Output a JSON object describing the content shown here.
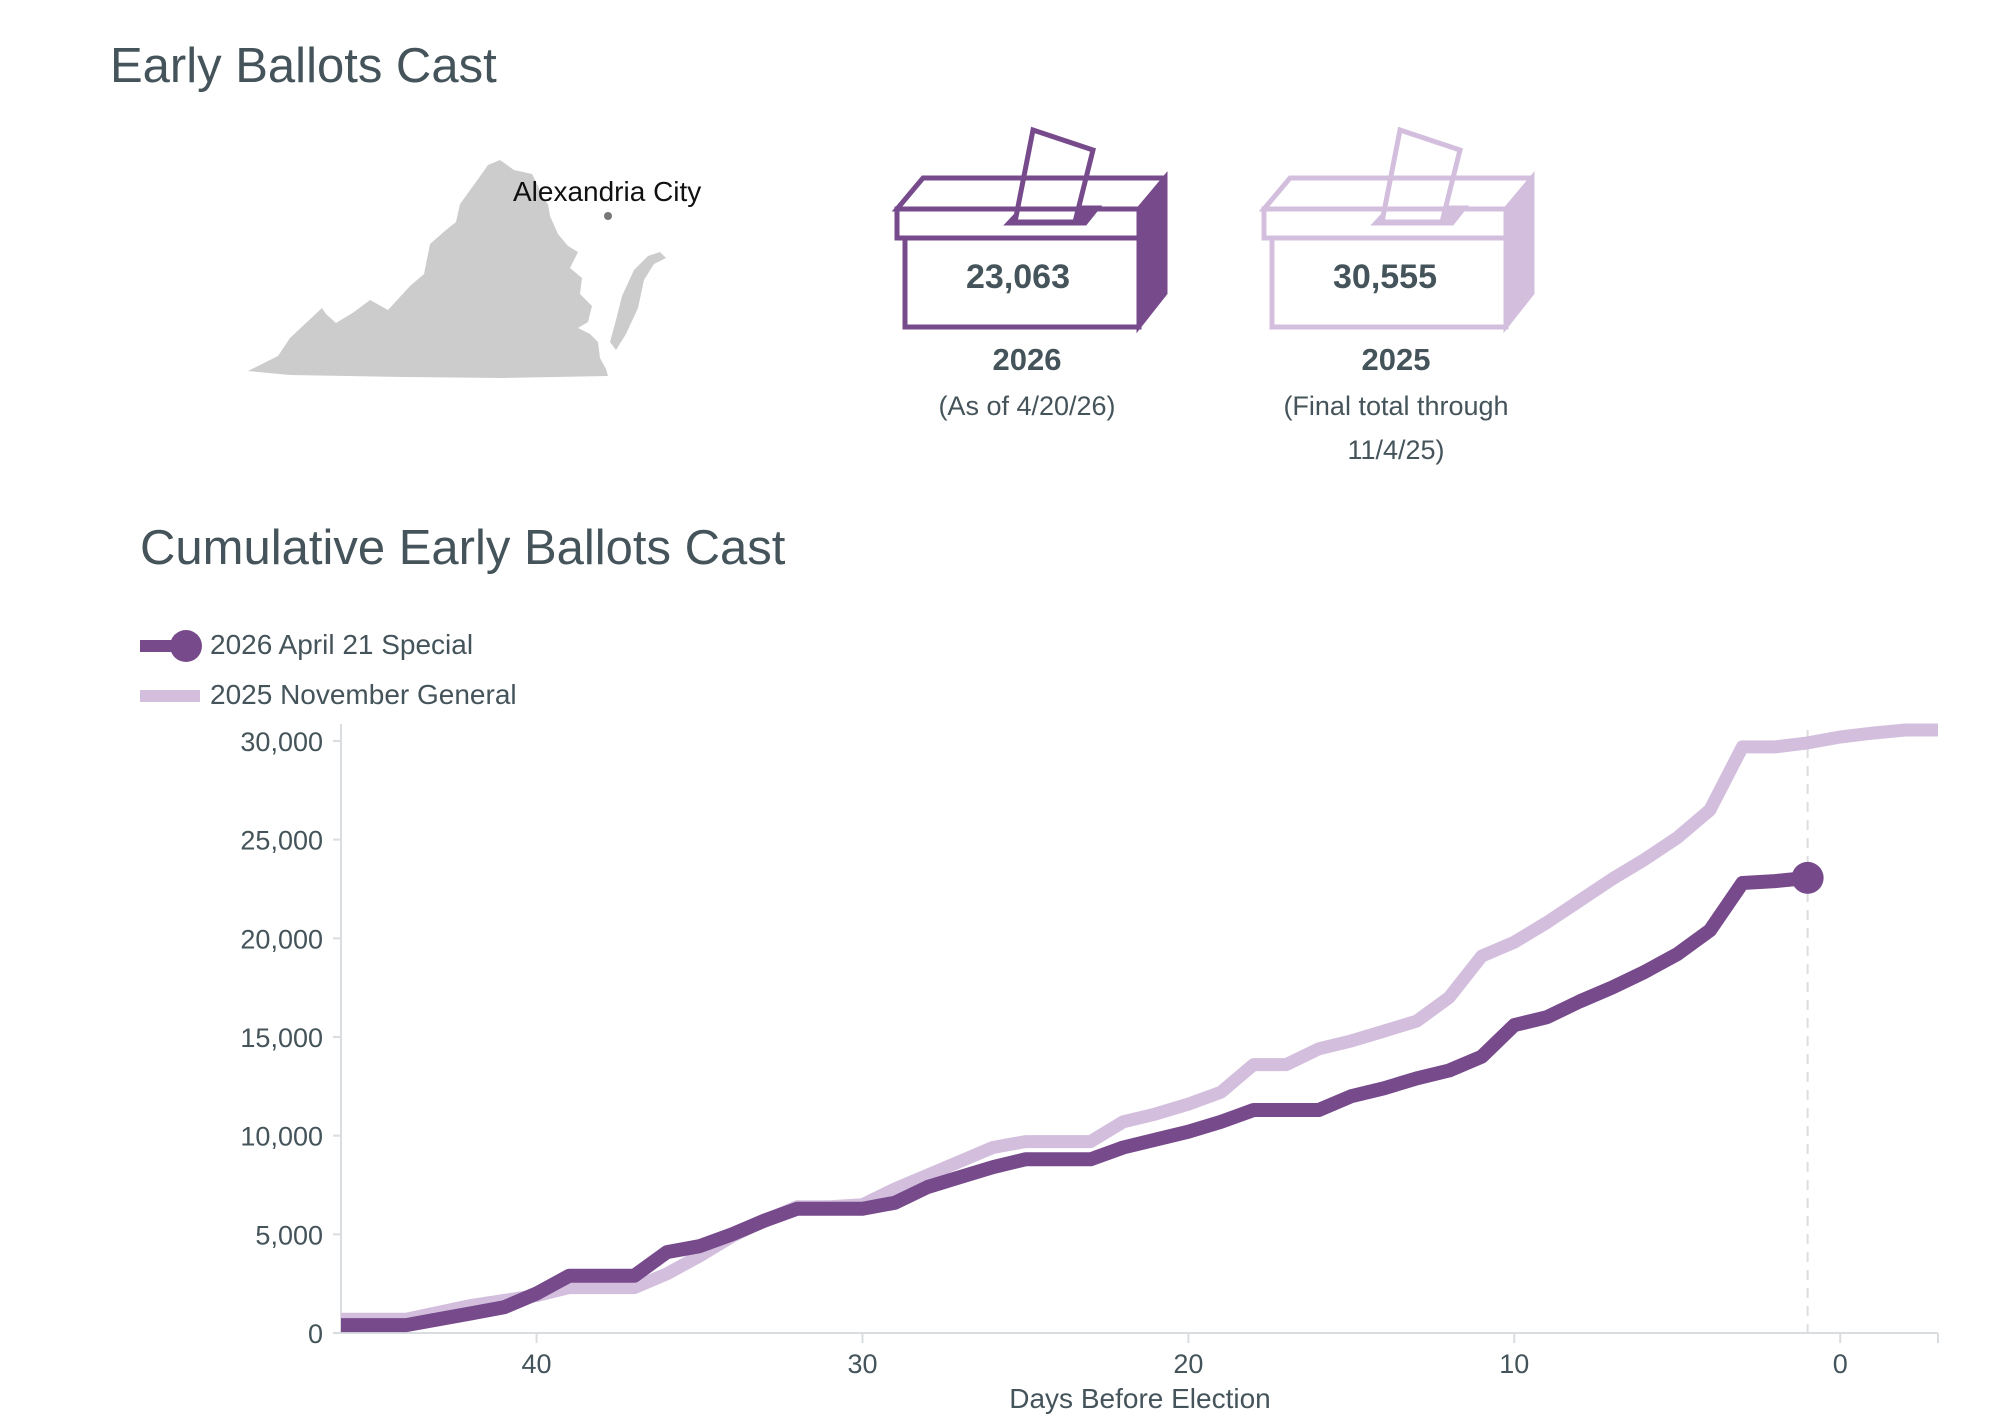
{
  "page_title": "Early Ballots Cast",
  "map": {
    "state": "Virginia",
    "location_label": "Alexandria City"
  },
  "ballot_boxes": [
    {
      "count": "23,063",
      "year": "2026",
      "note": "(As of 4/20/26)",
      "color": "#774a8c"
    },
    {
      "count": "30,555",
      "year": "2025",
      "note_line1": "(Final total through",
      "note_line2": "11/4/25)",
      "color": "#d3bfdd"
    }
  ],
  "chart_title": "Cumulative Early Ballots Cast",
  "colors": {
    "primary": "#774a8c",
    "secondary": "#d3bfdd",
    "axis_text": "#44545a",
    "map_fill": "#cccccc"
  },
  "chart_data": {
    "type": "line",
    "title": "Cumulative Early Ballots Cast",
    "xlabel": "Days Before Election",
    "ylabel": "",
    "xlim": [
      46,
      -3
    ],
    "ylim": [
      0,
      30555
    ],
    "x_ticks": [
      40,
      30,
      20,
      10,
      0
    ],
    "x_tick_labels": [
      "40",
      "30",
      "20",
      "10",
      "0"
    ],
    "y_ticks": [
      0,
      5000,
      10000,
      15000,
      20000,
      25000,
      30000
    ],
    "y_tick_labels": [
      "0",
      "5,000",
      "10,000",
      "15,000",
      "20,000",
      "25,000",
      "30,000"
    ],
    "reference_line_x": 1,
    "legend_position": "top-left",
    "series": [
      {
        "name": "2025 November General",
        "x": [
          46,
          44,
          42,
          40,
          39,
          38,
          37,
          36,
          35,
          34,
          33,
          32,
          31,
          30,
          29,
          28,
          27,
          26,
          25,
          24,
          23,
          22,
          21,
          20,
          19,
          18,
          17,
          16,
          15,
          14,
          13,
          12,
          11,
          10,
          9,
          8,
          7,
          6,
          5,
          4,
          3,
          2,
          1,
          0,
          -1,
          -2,
          -3
        ],
        "values": [
          700,
          700,
          1400,
          1900,
          2300,
          2300,
          2300,
          3000,
          3900,
          4900,
          5700,
          6400,
          6400,
          6500,
          7300,
          8000,
          8700,
          9400,
          9700,
          9700,
          9700,
          10700,
          11100,
          11600,
          12200,
          13600,
          13600,
          14400,
          14800,
          15300,
          15800,
          17000,
          19100,
          19800,
          20800,
          21900,
          23000,
          24000,
          25100,
          26500,
          29700,
          29700,
          29900,
          30200,
          30400,
          30555,
          30555
        ]
      },
      {
        "name": "2026 April 21 Special",
        "x": [
          46,
          44,
          43,
          42,
          41,
          40,
          39,
          38,
          37,
          36,
          35,
          34,
          33,
          32,
          31,
          30,
          29,
          28,
          27,
          26,
          25,
          24,
          23,
          22,
          21,
          20,
          19,
          18,
          17,
          16,
          15,
          14,
          13,
          12,
          11,
          10,
          9,
          8,
          7,
          6,
          5,
          4,
          3,
          2,
          1
        ],
        "values": [
          400,
          400,
          700,
          1000,
          1300,
          2000,
          2900,
          2900,
          2900,
          4100,
          4400,
          5000,
          5700,
          6300,
          6300,
          6300,
          6600,
          7400,
          7900,
          8400,
          8800,
          8800,
          8800,
          9400,
          9800,
          10200,
          10700,
          11300,
          11300,
          11300,
          12000,
          12400,
          12900,
          13300,
          14000,
          15600,
          16000,
          16800,
          17500,
          18300,
          19200,
          20400,
          22800,
          22900,
          23063
        ],
        "end_marker": true
      }
    ]
  }
}
